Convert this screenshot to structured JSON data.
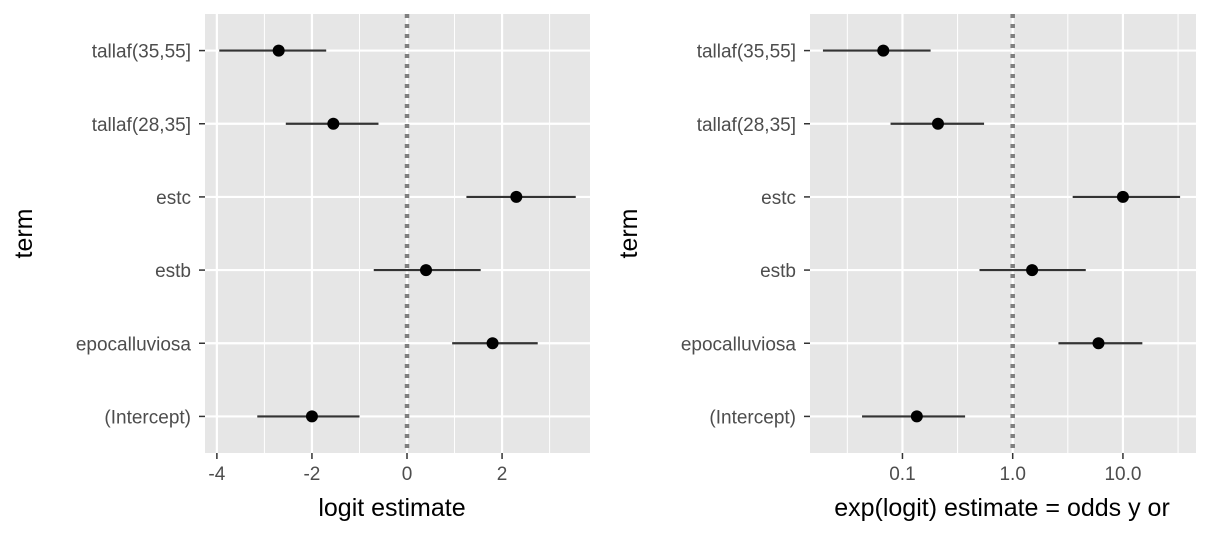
{
  "chart_data": [
    {
      "type": "scatter",
      "title": "",
      "xlabel": "logit estimate",
      "ylabel": "term",
      "x_scale": "linear",
      "xlim": [
        -4.25,
        3.85
      ],
      "x_ticks": [
        -4,
        -2,
        0,
        2
      ],
      "x_tick_labels": [
        "-4",
        "-2",
        "0",
        "2"
      ],
      "reference_line_x": 0,
      "grid": true,
      "categories": [
        "tallaf(35,55]",
        "tallaf(28,35]",
        "estc",
        "estb",
        "epocalluviosa",
        "(Intercept)"
      ],
      "points": [
        {
          "term": "tallaf(35,55]",
          "estimate": -2.7,
          "conf_low": -3.95,
          "conf_high": -1.7
        },
        {
          "term": "tallaf(28,35]",
          "estimate": -1.55,
          "conf_low": -2.55,
          "conf_high": -0.6
        },
        {
          "term": "estc",
          "estimate": 2.3,
          "conf_low": 1.25,
          "conf_high": 3.55
        },
        {
          "term": "estb",
          "estimate": 0.4,
          "conf_low": -0.7,
          "conf_high": 1.55
        },
        {
          "term": "epocalluviosa",
          "estimate": 1.8,
          "conf_low": 0.95,
          "conf_high": 2.75
        },
        {
          "term": "(Intercept)",
          "estimate": -2.0,
          "conf_low": -3.15,
          "conf_high": -1.0
        }
      ]
    },
    {
      "type": "scatter",
      "title": "",
      "xlabel": "exp(logit) estimate = odds y or",
      "ylabel": "term",
      "x_scale": "log10",
      "xlim": [
        0.0145,
        46
      ],
      "x_ticks": [
        0.1,
        1,
        10
      ],
      "x_tick_labels": [
        "0.1",
        "1.0",
        "10.0"
      ],
      "reference_line_x": 1,
      "grid": true,
      "categories": [
        "tallaf(35,55]",
        "tallaf(28,35]",
        "estc",
        "estb",
        "epocalluviosa",
        "(Intercept)"
      ],
      "points": [
        {
          "term": "tallaf(35,55]",
          "estimate": 0.067,
          "conf_low": 0.019,
          "conf_high": 0.18
        },
        {
          "term": "tallaf(28,35]",
          "estimate": 0.21,
          "conf_low": 0.078,
          "conf_high": 0.55
        },
        {
          "term": "estc",
          "estimate": 10.0,
          "conf_low": 3.5,
          "conf_high": 33.0
        },
        {
          "term": "estb",
          "estimate": 1.5,
          "conf_low": 0.5,
          "conf_high": 4.6
        },
        {
          "term": "epocalluviosa",
          "estimate": 6.0,
          "conf_low": 2.6,
          "conf_high": 15.0
        },
        {
          "term": "(Intercept)",
          "estimate": 0.135,
          "conf_low": 0.043,
          "conf_high": 0.37
        }
      ]
    }
  ],
  "style": {
    "panel_bg": "#e6e6e6",
    "grid_color": "#ffffff",
    "point_color": "#000000",
    "interval_color": "#333333",
    "reference_line_color": "#7f7f7f",
    "tick_color": "#333333"
  }
}
